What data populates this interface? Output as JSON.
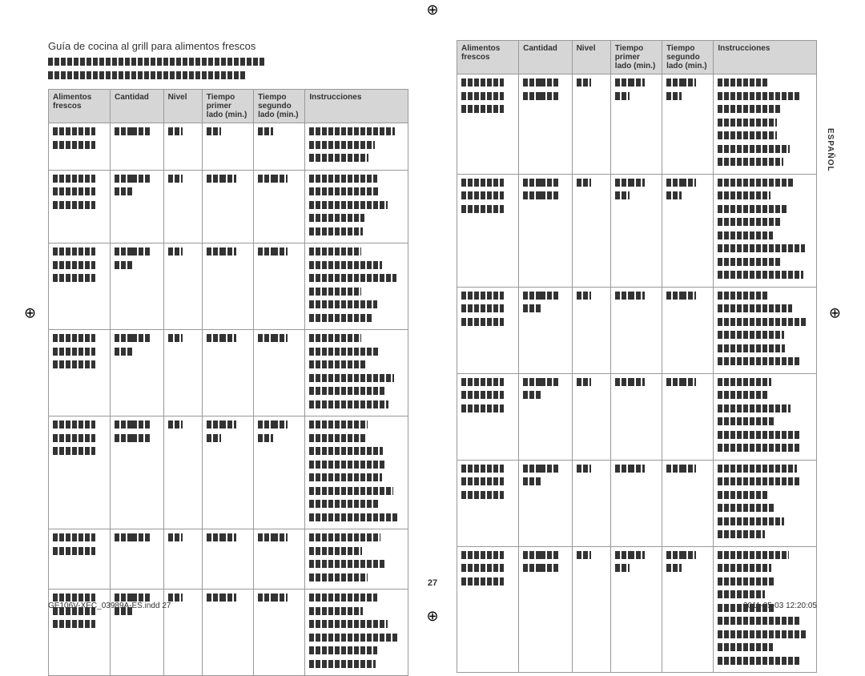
{
  "section_title": "Guía de cocina al grill para alimentos frescos",
  "page_number": "27",
  "footer_left": "GE106V-XEC_03989A-ES.indd   27",
  "footer_right": "2011-05-03   12:20:05",
  "side_tab": "ESPAÑOL",
  "headers": {
    "h1": "Alimentos frescos",
    "h2": "Cantidad",
    "h3": "Nivel",
    "h4": "Tiempo primer lado (min.)",
    "h5": "Tiempo segundo lado (min.)",
    "h6": "Instrucciones"
  },
  "table1_rows": [
    {
      "lines": 3
    },
    {
      "lines": 5
    },
    {
      "lines": 6
    },
    {
      "lines": 6
    },
    {
      "lines": 8
    },
    {
      "lines": 4
    },
    {
      "lines": 6
    }
  ],
  "table2_rows": [
    {
      "lines": 7
    },
    {
      "lines": 8
    },
    {
      "lines": 6
    },
    {
      "lines": 6
    },
    {
      "lines": 6
    },
    {
      "lines": 9
    }
  ]
}
